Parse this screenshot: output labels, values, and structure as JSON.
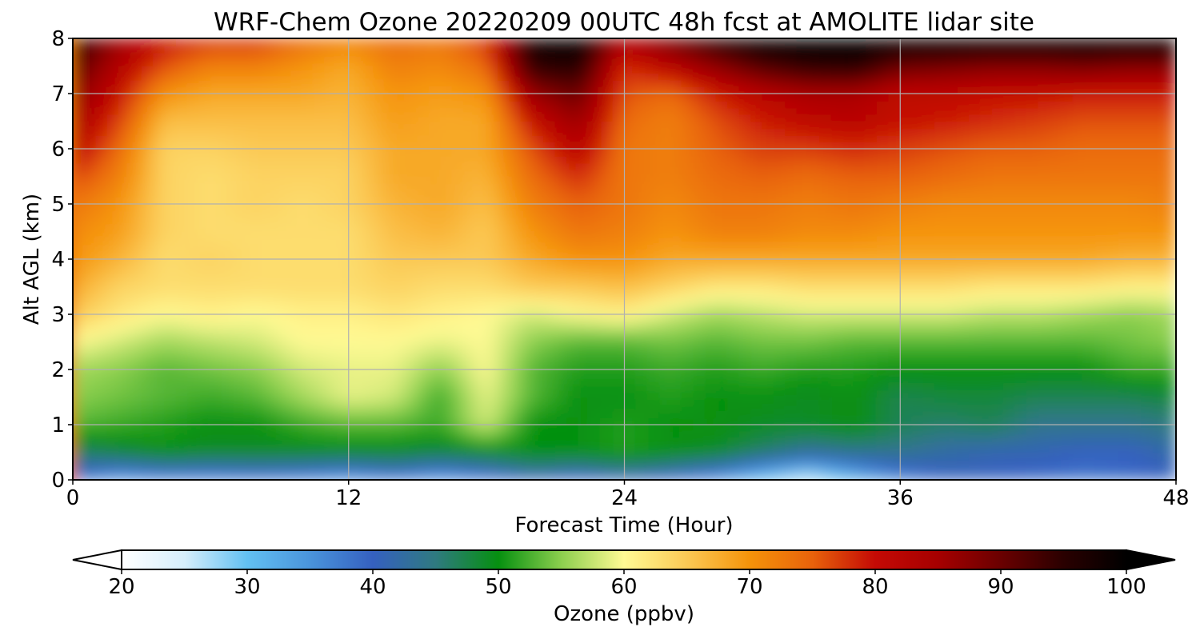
{
  "chart_data": {
    "type": "heatmap",
    "title": "WRF-Chem Ozone  20220209 00UTC 48h fcst at AMOLITE lidar site",
    "xlabel": "Forecast Time (Hour)",
    "ylabel": "Alt AGL (km)",
    "xlim": [
      0,
      48
    ],
    "ylim": [
      0,
      8
    ],
    "x_ticks": [
      "0",
      "12",
      "24",
      "36",
      "48"
    ],
    "y_ticks": [
      "0",
      "1",
      "2",
      "3",
      "4",
      "5",
      "6",
      "7",
      "8"
    ],
    "grid": true,
    "colorbar": {
      "label": "Ozone  (ppbv)",
      "orientation": "horizontal",
      "range": [
        20,
        100
      ],
      "extend": "both",
      "ticks": [
        "20",
        "30",
        "40",
        "50",
        "60",
        "70",
        "80",
        "90",
        "100"
      ],
      "stops": [
        {
          "value": 20,
          "color": "#ffffff"
        },
        {
          "value": 25,
          "color": "#d6eefb"
        },
        {
          "value": 30,
          "color": "#62c0f2"
        },
        {
          "value": 35,
          "color": "#4a94db"
        },
        {
          "value": 40,
          "color": "#3560c0"
        },
        {
          "value": 45,
          "color": "#2f7a80"
        },
        {
          "value": 50,
          "color": "#069010"
        },
        {
          "value": 55,
          "color": "#8ccf4e"
        },
        {
          "value": 60,
          "color": "#fffa94"
        },
        {
          "value": 65,
          "color": "#fbc955"
        },
        {
          "value": 70,
          "color": "#f5930a"
        },
        {
          "value": 75,
          "color": "#e8620b"
        },
        {
          "value": 80,
          "color": "#c40a05"
        },
        {
          "value": 85,
          "color": "#a60000"
        },
        {
          "value": 90,
          "color": "#6a0000"
        },
        {
          "value": 95,
          "color": "#2a0000"
        },
        {
          "value": 100,
          "color": "#000000"
        }
      ]
    },
    "x": [
      0,
      2,
      4,
      6,
      8,
      10,
      12,
      14,
      16,
      18,
      20,
      22,
      24,
      26,
      28,
      30,
      32,
      34,
      36,
      38,
      40,
      42,
      44,
      46,
      48
    ],
    "y": [
      0,
      0.5,
      1,
      1.5,
      2,
      2.5,
      3,
      3.5,
      4,
      4.5,
      5,
      5.5,
      6,
      6.5,
      7,
      7.5,
      8
    ],
    "z": [
      [
        38,
        33,
        35,
        35,
        36,
        35,
        33,
        36,
        33,
        36,
        40,
        38,
        40,
        38,
        34,
        28,
        24,
        30,
        36,
        40,
        40,
        39,
        38,
        39,
        40
      ],
      [
        46,
        48,
        50,
        49,
        49,
        49,
        49,
        49,
        48,
        49,
        50,
        50,
        51,
        50,
        49,
        46,
        43,
        44,
        44,
        42,
        41,
        41,
        40,
        40,
        42
      ],
      [
        53,
        52,
        51,
        50,
        50,
        52,
        53,
        53,
        52,
        58,
        50,
        50,
        51,
        50,
        50,
        49,
        49,
        50,
        47,
        46,
        47,
        44,
        44,
        44,
        45
      ],
      [
        55,
        54,
        53,
        52,
        53,
        56,
        59,
        58,
        52,
        59,
        53,
        50,
        50,
        51,
        50,
        50,
        49,
        50,
        47,
        48,
        48,
        47,
        47,
        47,
        48
      ],
      [
        56,
        55,
        53,
        54,
        55,
        58,
        59,
        59,
        55,
        60,
        53,
        51,
        51,
        52,
        51,
        52,
        51,
        51,
        50,
        50,
        50,
        50,
        50,
        52,
        52
      ],
      [
        60,
        58,
        56,
        57,
        58,
        60,
        60,
        60,
        59,
        60,
        55,
        53,
        53,
        54,
        53,
        54,
        54,
        53,
        53,
        53,
        53,
        53,
        53,
        54,
        55
      ],
      [
        65,
        62,
        60,
        61,
        60,
        61,
        61,
        62,
        61,
        60,
        58,
        60,
        61,
        58,
        56,
        57,
        58,
        58,
        58,
        58,
        57,
        57,
        56,
        55,
        56
      ],
      [
        68,
        64,
        63,
        63,
        63,
        63,
        63,
        64,
        63,
        63,
        65,
        65,
        66,
        64,
        62,
        62,
        63,
        63,
        63,
        63,
        62,
        62,
        62,
        61,
        61
      ],
      [
        70,
        67,
        63,
        64,
        63,
        63,
        63,
        65,
        65,
        65,
        68,
        70,
        70,
        68,
        68,
        68,
        68,
        68,
        68,
        68,
        68,
        68,
        68,
        67,
        67
      ],
      [
        71,
        69,
        64,
        63,
        63,
        63,
        63,
        66,
        67,
        65,
        70,
        73,
        72,
        70,
        72,
        72,
        71,
        71,
        70,
        70,
        70,
        70,
        70,
        70,
        70
      ],
      [
        73,
        70,
        64,
        63,
        64,
        63,
        64,
        67,
        68,
        66,
        72,
        75,
        73,
        71,
        73,
        73,
        72,
        73,
        72,
        71,
        71,
        71,
        71,
        71,
        72
      ],
      [
        77,
        72,
        64,
        63,
        64,
        64,
        64,
        68,
        68,
        67,
        74,
        78,
        73,
        72,
        74,
        75,
        74,
        75,
        75,
        74,
        73,
        73,
        73,
        73,
        73
      ],
      [
        82,
        74,
        64,
        64,
        65,
        65,
        65,
        68,
        68,
        68,
        76,
        82,
        73,
        72,
        75,
        77,
        77,
        78,
        77,
        76,
        75,
        75,
        74,
        74,
        74
      ],
      [
        85,
        77,
        66,
        66,
        66,
        66,
        66,
        69,
        68,
        68,
        80,
        86,
        74,
        72,
        76,
        79,
        81,
        82,
        80,
        79,
        78,
        77,
        76,
        76,
        76
      ],
      [
        88,
        80,
        70,
        68,
        68,
        68,
        67,
        70,
        69,
        70,
        86,
        90,
        76,
        74,
        79,
        82,
        84,
        84,
        81,
        81,
        80,
        80,
        79,
        79,
        79
      ],
      [
        92,
        83,
        76,
        72,
        72,
        70,
        68,
        72,
        71,
        74,
        95,
        96,
        78,
        82,
        87,
        92,
        95,
        96,
        90,
        89,
        88,
        88,
        89,
        88,
        88
      ],
      [
        96,
        86,
        80,
        78,
        78,
        74,
        72,
        74,
        73,
        78,
        98,
        100,
        84,
        90,
        96,
        100,
        100,
        100,
        100,
        100,
        100,
        100,
        100,
        100,
        100
      ]
    ]
  }
}
